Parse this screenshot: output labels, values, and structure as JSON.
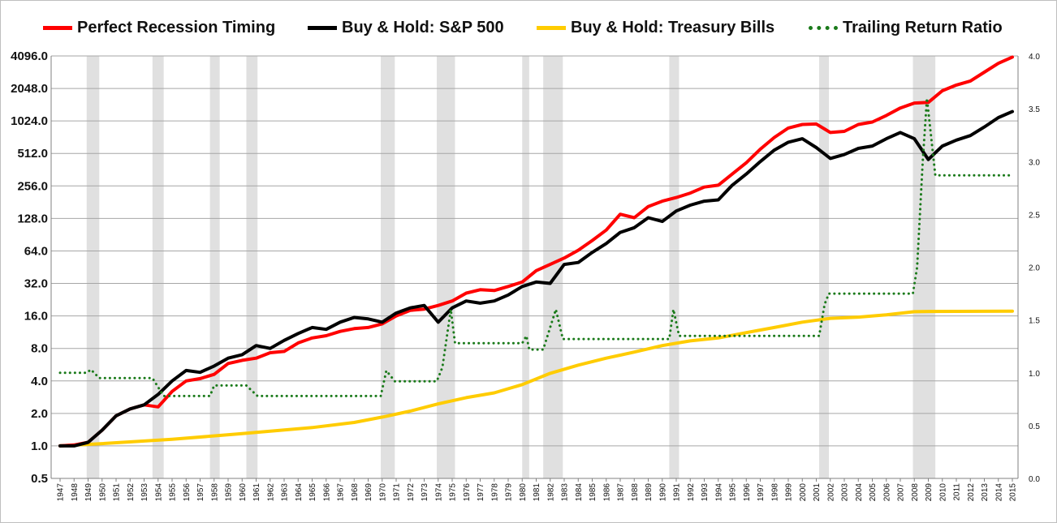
{
  "legend": {
    "items": [
      {
        "label": "Perfect Recession Timing",
        "color": "#ff0000",
        "style": "solid"
      },
      {
        "label": "Buy & Hold: S&P 500",
        "color": "#000000",
        "style": "solid"
      },
      {
        "label": "Buy & Hold: Treasury Bills",
        "color": "#ffcc00",
        "style": "solid"
      },
      {
        "label": "Trailing Return Ratio",
        "color": "#1a7a1a",
        "style": "dotted"
      }
    ]
  },
  "chart_data": {
    "type": "line",
    "title": "",
    "xlabel": "",
    "ylabel": "",
    "x_axis": {
      "range": [
        1947,
        2015
      ],
      "tick_labels": [
        "1947",
        "1948",
        "1949",
        "1950",
        "1951",
        "1952",
        "1953",
        "1954",
        "1955",
        "1956",
        "1957",
        "1958",
        "1959",
        "1960",
        "1961",
        "1962",
        "1963",
        "1964",
        "1965",
        "1966",
        "1967",
        "1968",
        "1969",
        "1970",
        "1971",
        "1972",
        "1973",
        "1974",
        "1975",
        "1976",
        "1977",
        "1978",
        "1979",
        "1980",
        "1981",
        "1982",
        "1983",
        "1984",
        "1985",
        "1986",
        "1987",
        "1988",
        "1989",
        "1990",
        "1991",
        "1992",
        "1993",
        "1994",
        "1995",
        "1996",
        "1997",
        "1998",
        "1999",
        "2000",
        "2001",
        "2002",
        "2003",
        "2004",
        "2005",
        "2006",
        "2007",
        "2008",
        "2009",
        "2010",
        "2011",
        "2012",
        "2013",
        "2014",
        "2015"
      ],
      "label_orientation": "vertical"
    },
    "y_axis_left": {
      "scale": "log2",
      "range": [
        0.5,
        4096
      ],
      "tick_labels": [
        "4096.0",
        "2048.0",
        "1024.0",
        "512.0",
        "256.0",
        "128.0",
        "64.0",
        "32.0",
        "16.0",
        "8.0",
        "4.0",
        "2.0",
        "1.0",
        "0.5"
      ],
      "tick_values": [
        4096,
        2048,
        1024,
        512,
        256,
        128,
        64,
        32,
        16,
        8,
        4,
        2,
        1,
        0.5
      ]
    },
    "y_axis_right": {
      "scale": "linear",
      "range": [
        0.0,
        4.0
      ],
      "tick_labels": [
        "4.0",
        "3.5",
        "3.0",
        "2.5",
        "2.0",
        "1.5",
        "1.0",
        "0.5",
        "0.0"
      ],
      "tick_values": [
        4.0,
        3.5,
        3.0,
        2.5,
        2.0,
        1.5,
        1.0,
        0.5,
        0.0
      ]
    },
    "grid": "horizontal",
    "legend_position": "top",
    "recession_shading": {
      "color": "#e0e0e0",
      "periods": [
        [
          1948.9,
          1949.8
        ],
        [
          1953.6,
          1954.4
        ],
        [
          1957.7,
          1958.4
        ],
        [
          1960.3,
          1961.1
        ],
        [
          1969.9,
          1970.9
        ],
        [
          1973.9,
          1975.2
        ],
        [
          1980.0,
          1980.5
        ],
        [
          1981.5,
          1982.9
        ],
        [
          1990.5,
          1991.2
        ],
        [
          2001.2,
          2001.9
        ],
        [
          2007.9,
          2009.5
        ]
      ]
    },
    "series": [
      {
        "name": "Perfect Recession Timing",
        "axis": "left",
        "color": "#ff0000",
        "style": "solid",
        "points": [
          [
            1947,
            1.0
          ],
          [
            1948,
            1.02
          ],
          [
            1949,
            1.08
          ],
          [
            1950,
            1.4
          ],
          [
            1951,
            1.9
          ],
          [
            1952,
            2.2
          ],
          [
            1953,
            2.4
          ],
          [
            1954,
            2.3
          ],
          [
            1955,
            3.2
          ],
          [
            1956,
            4.0
          ],
          [
            1957,
            4.2
          ],
          [
            1958,
            4.6
          ],
          [
            1959,
            5.8
          ],
          [
            1960,
            6.2
          ],
          [
            1961,
            6.5
          ],
          [
            1962,
            7.3
          ],
          [
            1963,
            7.5
          ],
          [
            1964,
            9.0
          ],
          [
            1965,
            10.0
          ],
          [
            1966,
            10.5
          ],
          [
            1967,
            11.5
          ],
          [
            1968,
            12.2
          ],
          [
            1969,
            12.5
          ],
          [
            1970,
            13.5
          ],
          [
            1971,
            16.0
          ],
          [
            1972,
            18.0
          ],
          [
            1973,
            18.5
          ],
          [
            1974,
            20.0
          ],
          [
            1975,
            22.0
          ],
          [
            1976,
            26.0
          ],
          [
            1977,
            28.0
          ],
          [
            1978,
            27.5
          ],
          [
            1979,
            30.0
          ],
          [
            1980,
            33.0
          ],
          [
            1981,
            42.0
          ],
          [
            1982,
            48.0
          ],
          [
            1983,
            55.0
          ],
          [
            1984,
            65.0
          ],
          [
            1985,
            80.0
          ],
          [
            1986,
            100.0
          ],
          [
            1987,
            140.0
          ],
          [
            1988,
            130.0
          ],
          [
            1989,
            165.0
          ],
          [
            1990,
            185.0
          ],
          [
            1991,
            200.0
          ],
          [
            1992,
            220.0
          ],
          [
            1993,
            250.0
          ],
          [
            1994,
            260.0
          ],
          [
            1995,
            330.0
          ],
          [
            1996,
            420.0
          ],
          [
            1997,
            560.0
          ],
          [
            1998,
            720.0
          ],
          [
            1999,
            880.0
          ],
          [
            2000,
            950.0
          ],
          [
            2001,
            960.0
          ],
          [
            2002,
            800.0
          ],
          [
            2003,
            820.0
          ],
          [
            2004,
            950.0
          ],
          [
            2005,
            1000.0
          ],
          [
            2006,
            1150.0
          ],
          [
            2007,
            1350.0
          ],
          [
            2008,
            1500.0
          ],
          [
            2009,
            1520.0
          ],
          [
            2010,
            1950.0
          ],
          [
            2011,
            2200.0
          ],
          [
            2012,
            2400.0
          ],
          [
            2013,
            2900.0
          ],
          [
            2014,
            3500.0
          ],
          [
            2015,
            4000.0
          ]
        ]
      },
      {
        "name": "Buy & Hold: S&P 500",
        "axis": "left",
        "color": "#000000",
        "style": "solid",
        "points": [
          [
            1947,
            1.0
          ],
          [
            1948,
            1.0
          ],
          [
            1949,
            1.08
          ],
          [
            1950,
            1.4
          ],
          [
            1951,
            1.9
          ],
          [
            1952,
            2.2
          ],
          [
            1953,
            2.4
          ],
          [
            1954,
            3.0
          ],
          [
            1955,
            4.0
          ],
          [
            1956,
            5.0
          ],
          [
            1957,
            4.8
          ],
          [
            1958,
            5.5
          ],
          [
            1959,
            6.5
          ],
          [
            1960,
            7.0
          ],
          [
            1961,
            8.5
          ],
          [
            1962,
            8.0
          ],
          [
            1963,
            9.5
          ],
          [
            1964,
            11.0
          ],
          [
            1965,
            12.5
          ],
          [
            1966,
            12.0
          ],
          [
            1967,
            14.0
          ],
          [
            1968,
            15.5
          ],
          [
            1969,
            15.0
          ],
          [
            1970,
            14.0
          ],
          [
            1971,
            17.0
          ],
          [
            1972,
            19.0
          ],
          [
            1973,
            20.0
          ],
          [
            1974,
            14.0
          ],
          [
            1975,
            19.0
          ],
          [
            1976,
            22.0
          ],
          [
            1977,
            21.0
          ],
          [
            1978,
            22.0
          ],
          [
            1979,
            25.0
          ],
          [
            1980,
            30.0
          ],
          [
            1981,
            33.0
          ],
          [
            1982,
            32.0
          ],
          [
            1983,
            48.0
          ],
          [
            1984,
            50.0
          ],
          [
            1985,
            62.0
          ],
          [
            1986,
            75.0
          ],
          [
            1987,
            95.0
          ],
          [
            1988,
            105.0
          ],
          [
            1989,
            130.0
          ],
          [
            1990,
            120.0
          ],
          [
            1991,
            150.0
          ],
          [
            1992,
            170.0
          ],
          [
            1993,
            185.0
          ],
          [
            1994,
            190.0
          ],
          [
            1995,
            260.0
          ],
          [
            1996,
            330.0
          ],
          [
            1997,
            430.0
          ],
          [
            1998,
            550.0
          ],
          [
            1999,
            650.0
          ],
          [
            2000,
            700.0
          ],
          [
            2001,
            580.0
          ],
          [
            2002,
            460.0
          ],
          [
            2003,
            500.0
          ],
          [
            2004,
            570.0
          ],
          [
            2005,
            600.0
          ],
          [
            2006,
            700.0
          ],
          [
            2007,
            800.0
          ],
          [
            2008,
            700.0
          ],
          [
            2009,
            450.0
          ],
          [
            2010,
            600.0
          ],
          [
            2011,
            680.0
          ],
          [
            2012,
            750.0
          ],
          [
            2013,
            900.0
          ],
          [
            2014,
            1100.0
          ],
          [
            2015,
            1250.0
          ]
        ]
      },
      {
        "name": "Buy & Hold: Treasury Bills",
        "axis": "left",
        "color": "#ffcc00",
        "style": "solid",
        "points": [
          [
            1947,
            1.0
          ],
          [
            1950,
            1.05
          ],
          [
            1955,
            1.15
          ],
          [
            1960,
            1.3
          ],
          [
            1965,
            1.48
          ],
          [
            1968,
            1.65
          ],
          [
            1970,
            1.85
          ],
          [
            1972,
            2.1
          ],
          [
            1974,
            2.45
          ],
          [
            1976,
            2.8
          ],
          [
            1978,
            3.1
          ],
          [
            1980,
            3.7
          ],
          [
            1982,
            4.7
          ],
          [
            1984,
            5.6
          ],
          [
            1986,
            6.5
          ],
          [
            1988,
            7.4
          ],
          [
            1990,
            8.5
          ],
          [
            1992,
            9.4
          ],
          [
            1994,
            10.0
          ],
          [
            1996,
            11.2
          ],
          [
            1998,
            12.5
          ],
          [
            2000,
            14.0
          ],
          [
            2002,
            15.2
          ],
          [
            2004,
            15.6
          ],
          [
            2006,
            16.4
          ],
          [
            2008,
            17.5
          ],
          [
            2009,
            17.6
          ],
          [
            2015,
            17.7
          ]
        ]
      },
      {
        "name": "Trailing Return Ratio",
        "axis": "right",
        "color": "#1a7a1a",
        "style": "dotted",
        "points": [
          [
            1947,
            1.0
          ],
          [
            1948.9,
            1.0
          ],
          [
            1949.2,
            1.03
          ],
          [
            1949.8,
            0.95
          ],
          [
            1953.6,
            0.95
          ],
          [
            1954.4,
            0.78
          ],
          [
            1957.7,
            0.78
          ],
          [
            1958.0,
            0.88
          ],
          [
            1960.3,
            0.88
          ],
          [
            1961.1,
            0.78
          ],
          [
            1969.9,
            0.78
          ],
          [
            1970.3,
            1.02
          ],
          [
            1970.9,
            0.92
          ],
          [
            1973.9,
            0.92
          ],
          [
            1974.3,
            1.05
          ],
          [
            1974.9,
            1.6
          ],
          [
            1975.2,
            1.28
          ],
          [
            1980.0,
            1.28
          ],
          [
            1980.3,
            1.35
          ],
          [
            1980.5,
            1.22
          ],
          [
            1981.5,
            1.22
          ],
          [
            1982.4,
            1.6
          ],
          [
            1982.9,
            1.32
          ],
          [
            1990.5,
            1.32
          ],
          [
            1990.8,
            1.6
          ],
          [
            1991.2,
            1.35
          ],
          [
            2001.2,
            1.35
          ],
          [
            2001.6,
            1.65
          ],
          [
            2001.9,
            1.75
          ],
          [
            2007.9,
            1.75
          ],
          [
            2008.2,
            2.0
          ],
          [
            2008.6,
            3.0
          ],
          [
            2008.9,
            3.6
          ],
          [
            2009.5,
            2.87
          ],
          [
            2015,
            2.87
          ]
        ]
      }
    ]
  }
}
